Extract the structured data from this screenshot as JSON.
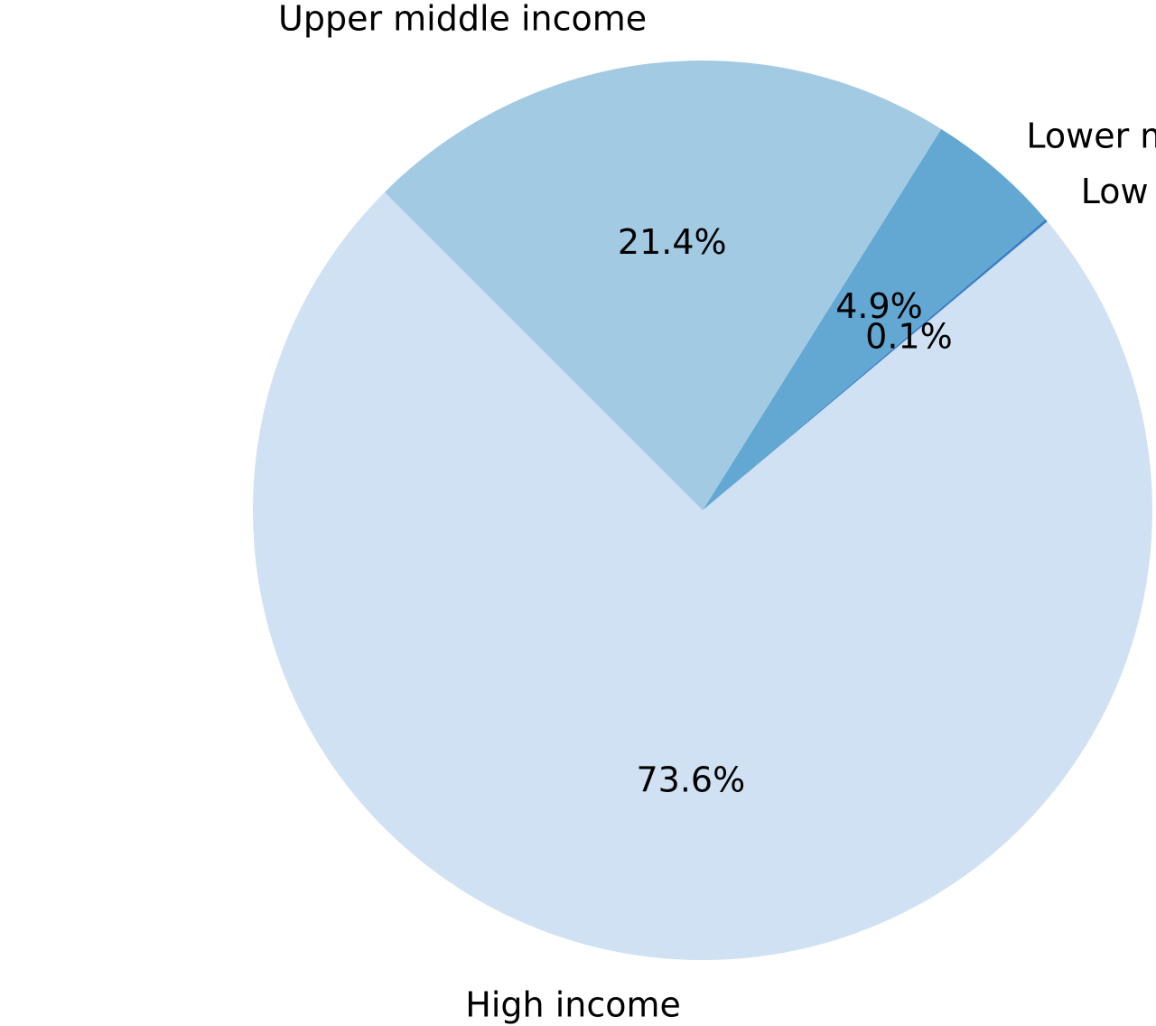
{
  "chart_data": {
    "type": "pie",
    "title": "",
    "start_angle_deg": 135,
    "direction": "counterclockwise",
    "slices": [
      {
        "label": "High income",
        "value": 73.6,
        "pct_label": "73.6%",
        "color": "#cfe1f2"
      },
      {
        "label": "Low income",
        "value": 0.1,
        "pct_label": "0.1%",
        "color": "#3a7fc7"
      },
      {
        "label": "Lower middle income",
        "value": 4.9,
        "pct_label": "4.9%",
        "color": "#62a8d3"
      },
      {
        "label": "Upper middle income",
        "value": 21.4,
        "pct_label": "21.4%",
        "color": "#a2cae3"
      }
    ]
  }
}
